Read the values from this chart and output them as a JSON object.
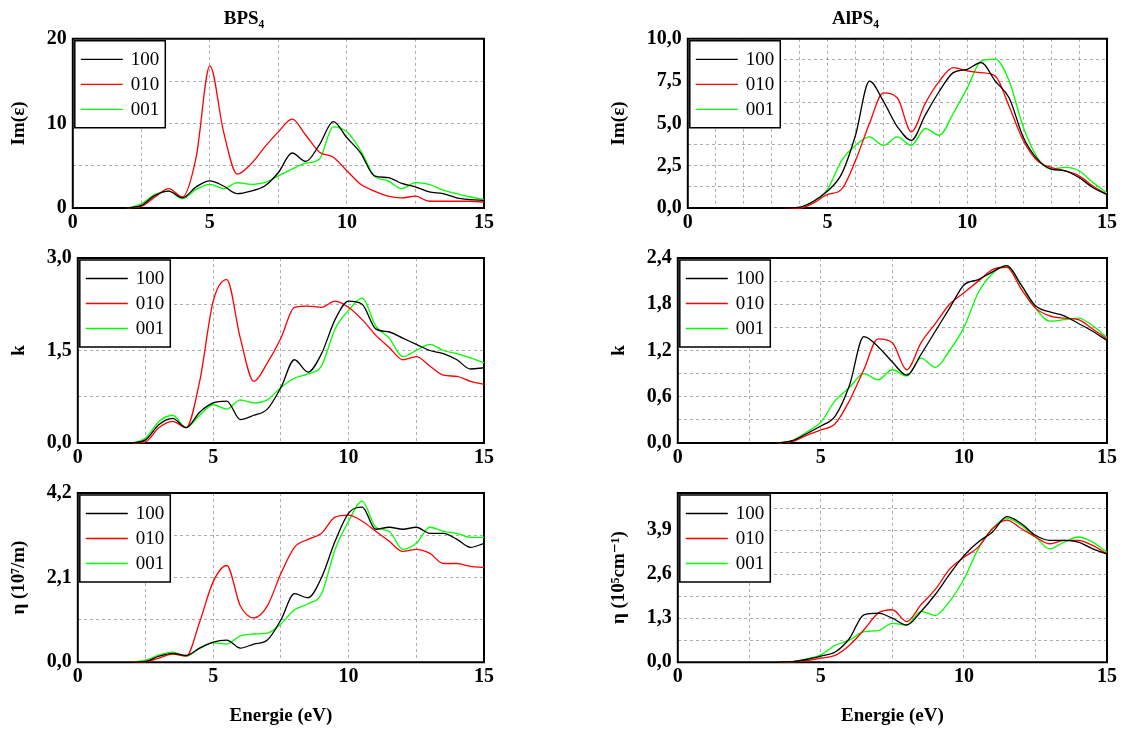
{
  "chart_data": [
    {
      "type": "line",
      "title": "BPS₄",
      "ylabel": "Im(ε)",
      "x": [
        2,
        2.5,
        3,
        3.5,
        4,
        4.5,
        5,
        5.5,
        6,
        6.5,
        7,
        7.5,
        8,
        8.5,
        9,
        9.5,
        10,
        10.5,
        11,
        11.5,
        12,
        12.5,
        13,
        13.5,
        14,
        14.5,
        15
      ],
      "xlim": [
        0,
        15
      ],
      "xticks": [
        0,
        {
          "value": 2.5,
          "label": null
        },
        5,
        {
          "value": 7.5,
          "label": null
        },
        10,
        {
          "value": 12.5,
          "label": null
        },
        15
      ],
      "ylim": [
        0,
        20
      ],
      "yticks": [
        0,
        {
          "value": 5,
          "label": null
        },
        10,
        {
          "value": 15,
          "label": null
        },
        20
      ],
      "grid": true,
      "legend": "top left",
      "series": [
        {
          "name": "100",
          "color": "#000000",
          "values": [
            0,
            0.3,
            1.5,
            2.0,
            1.2,
            2.5,
            3.2,
            2.6,
            1.7,
            2.0,
            2.6,
            4.2,
            6.5,
            5.5,
            7.5,
            10.2,
            8.3,
            6.5,
            3.8,
            3.6,
            2.9,
            2.5,
            1.9,
            1.7,
            1.2,
            1.0,
            0.9
          ]
        },
        {
          "name": "010",
          "color": "#ff0000",
          "values": [
            0,
            0.2,
            1.3,
            2.3,
            1.3,
            6,
            16.8,
            9,
            4.0,
            5.2,
            7.2,
            9.0,
            10.5,
            8.6,
            6.6,
            6.0,
            4.4,
            2.8,
            2.0,
            1.4,
            1.2,
            1.4,
            0.8,
            0.8,
            0.8,
            0.8,
            0.7
          ]
        },
        {
          "name": "001",
          "color": "#00ff00",
          "values": [
            0,
            0.5,
            1.6,
            2.0,
            1.1,
            2.2,
            2.8,
            2.3,
            3.0,
            2.8,
            3.0,
            3.8,
            4.6,
            5.3,
            5.8,
            9.6,
            9.0,
            6.8,
            3.8,
            3.2,
            2.3,
            3.0,
            2.8,
            2.1,
            1.7,
            1.3,
            1.0
          ]
        }
      ]
    },
    {
      "type": "line",
      "title": "AlPS₄",
      "ylabel": "Im(ε)",
      "x": [
        3.5,
        4,
        4.5,
        5,
        5.5,
        6,
        6.5,
        7,
        7.5,
        8,
        8.5,
        9,
        9.5,
        10,
        10.5,
        11,
        11.5,
        12,
        12.5,
        13,
        13.5,
        14,
        14.5,
        15
      ],
      "xlim": [
        0,
        15
      ],
      "xticks": [
        0,
        {
          "value": 1,
          "label": null
        },
        {
          "value": 2,
          "label": null
        },
        {
          "value": 3,
          "label": null
        },
        {
          "value": 4,
          "label": null
        },
        5,
        {
          "value": 6,
          "label": null
        },
        {
          "value": 7,
          "label": null
        },
        {
          "value": 8,
          "label": null
        },
        {
          "value": 9,
          "label": null
        },
        10,
        {
          "value": 11,
          "label": null
        },
        {
          "value": 12,
          "label": null
        },
        {
          "value": 13,
          "label": null
        },
        {
          "value": 14,
          "label": null
        },
        15
      ],
      "ylim": [
        0,
        10
      ],
      "yticks": [
        {
          "value": 0,
          "label": "0,0"
        },
        {
          "value": 1.25,
          "label": null
        },
        {
          "value": 2.5,
          "label": "2,5"
        },
        {
          "value": 3.75,
          "label": null
        },
        {
          "value": 5,
          "label": "5,0"
        },
        {
          "value": 6.25,
          "label": null
        },
        {
          "value": 7.5,
          "label": "7,5"
        },
        {
          "value": 8.75,
          "label": null
        },
        {
          "value": 10,
          "label": "10,0"
        }
      ],
      "grid": true,
      "legend": "top left",
      "series": [
        {
          "name": "100",
          "color": "#000000",
          "values": [
            0,
            0.05,
            0.4,
            1.0,
            2.0,
            4.3,
            7.5,
            6.3,
            4.8,
            4.0,
            5.5,
            6.9,
            8.0,
            8.2,
            8.6,
            7.5,
            6.5,
            4.2,
            2.9,
            2.3,
            2.2,
            1.8,
            1.2,
            0.8
          ]
        },
        {
          "name": "010",
          "color": "#ff0000",
          "values": [
            0,
            0,
            0.3,
            0.8,
            1.1,
            2.8,
            5.0,
            6.8,
            6.5,
            4.5,
            6.2,
            7.5,
            8.3,
            8.1,
            8.0,
            7.8,
            6.0,
            4.0,
            2.8,
            2.4,
            2.2,
            1.9,
            1.3,
            0.8
          ]
        },
        {
          "name": "001",
          "color": "#00ff00",
          "values": [
            null,
            0,
            0.4,
            1.1,
            2.8,
            3.7,
            4.2,
            3.7,
            4.2,
            3.7,
            4.7,
            4.3,
            5.6,
            7.1,
            8.7,
            8.8,
            7.5,
            4.8,
            3.0,
            2.3,
            2.4,
            2.2,
            1.5,
            0.9
          ]
        }
      ]
    },
    {
      "type": "line",
      "ylabel": "k",
      "x": [
        2,
        2.5,
        3,
        3.5,
        4,
        4.5,
        5,
        5.5,
        6,
        6.5,
        7,
        7.5,
        8,
        8.5,
        9,
        9.5,
        10,
        10.5,
        11,
        11.5,
        12,
        12.5,
        13,
        13.5,
        14,
        14.5,
        15
      ],
      "xlim": [
        0,
        15
      ],
      "xticks": [
        0,
        {
          "value": 2.5,
          "label": null
        },
        5,
        {
          "value": 7.5,
          "label": null
        },
        10,
        {
          "value": 12.5,
          "label": null
        },
        15
      ],
      "ylim": [
        0,
        3
      ],
      "yticks": [
        {
          "value": 0,
          "label": "0,0"
        },
        {
          "value": 0.75,
          "label": null
        },
        {
          "value": 1.5,
          "label": "1,5"
        },
        {
          "value": 2.25,
          "label": null
        },
        {
          "value": 3,
          "label": "3,0"
        }
      ],
      "grid": true,
      "legend": "top left",
      "series": [
        {
          "name": "100",
          "color": "#000000",
          "values": [
            0,
            0.05,
            0.3,
            0.4,
            0.25,
            0.5,
            0.65,
            0.68,
            0.38,
            0.45,
            0.55,
            0.9,
            1.35,
            1.15,
            1.45,
            2.0,
            2.3,
            2.25,
            1.85,
            1.8,
            1.7,
            1.6,
            1.5,
            1.45,
            1.35,
            1.2,
            1.22
          ]
        },
        {
          "name": "010",
          "color": "#ff0000",
          "values": [
            0,
            0.02,
            0.25,
            0.35,
            0.25,
            1.0,
            2.3,
            2.65,
            1.7,
            1.0,
            1.3,
            1.7,
            2.2,
            2.22,
            2.2,
            2.3,
            2.2,
            2.0,
            1.75,
            1.55,
            1.35,
            1.4,
            1.25,
            1.1,
            1.08,
            1.0,
            0.95
          ]
        },
        {
          "name": "001",
          "color": "#00ff00",
          "values": [
            0,
            0.08,
            0.35,
            0.45,
            0.25,
            0.45,
            0.62,
            0.55,
            0.7,
            0.65,
            0.7,
            0.9,
            1.05,
            1.12,
            1.25,
            1.85,
            2.15,
            2.35,
            1.9,
            1.7,
            1.4,
            1.5,
            1.6,
            1.5,
            1.45,
            1.38,
            1.3
          ]
        }
      ]
    },
    {
      "type": "line",
      "ylabel": "k",
      "x": [
        3.5,
        4,
        4.5,
        5,
        5.5,
        6,
        6.5,
        7,
        7.5,
        8,
        8.5,
        9,
        9.5,
        10,
        10.5,
        11,
        11.5,
        12,
        12.5,
        13,
        13.5,
        14,
        14.5,
        15
      ],
      "xlim": [
        0,
        15
      ],
      "xticks": [
        0,
        {
          "value": 2.5,
          "label": null
        },
        5,
        {
          "value": 7.5,
          "label": null
        },
        10,
        {
          "value": 12.5,
          "label": null
        },
        15
      ],
      "ylim": [
        0,
        2.4
      ],
      "yticks": [
        {
          "value": 0,
          "label": "0,0"
        },
        {
          "value": 0.3,
          "label": null
        },
        {
          "value": 0.6,
          "label": "0,6"
        },
        {
          "value": 0.9,
          "label": null
        },
        {
          "value": 1.2,
          "label": "1,2"
        },
        {
          "value": 1.5,
          "label": null
        },
        {
          "value": 1.8,
          "label": "1,8"
        },
        {
          "value": 2.1,
          "label": null
        },
        {
          "value": 2.4,
          "label": "2,4"
        }
      ],
      "grid": true,
      "legend": "top left",
      "series": [
        {
          "name": "100",
          "color": "#000000",
          "values": [
            0,
            0.03,
            0.12,
            0.22,
            0.35,
            0.75,
            1.38,
            1.25,
            1.05,
            0.88,
            1.15,
            1.45,
            1.75,
            2.05,
            2.12,
            2.22,
            2.3,
            2.05,
            1.78,
            1.7,
            1.65,
            1.55,
            1.45,
            1.33
          ]
        },
        {
          "name": "010",
          "color": "#ff0000",
          "values": [
            0,
            0.02,
            0.1,
            0.17,
            0.25,
            0.55,
            0.95,
            1.35,
            1.3,
            0.95,
            1.3,
            1.55,
            1.8,
            1.95,
            2.1,
            2.25,
            2.28,
            2.0,
            1.75,
            1.65,
            1.62,
            1.6,
            1.48,
            1.35
          ]
        },
        {
          "name": "001",
          "color": "#00ff00",
          "values": [
            0,
            0.03,
            0.14,
            0.27,
            0.55,
            0.72,
            0.9,
            0.82,
            0.95,
            0.87,
            1.1,
            0.98,
            1.2,
            1.5,
            1.95,
            2.2,
            2.3,
            2.05,
            1.75,
            1.58,
            1.6,
            1.62,
            1.52,
            1.37
          ]
        }
      ]
    },
    {
      "type": "line",
      "xlabel": "Energie (eV)",
      "ylabel": "η (10⁷/m)",
      "x": [
        2,
        2.5,
        3,
        3.5,
        4,
        4.5,
        5,
        5.5,
        6,
        6.5,
        7,
        7.5,
        8,
        8.5,
        9,
        9.5,
        10,
        10.5,
        11,
        11.5,
        12,
        12.5,
        13,
        13.5,
        14,
        14.5,
        15
      ],
      "xlim": [
        0,
        15
      ],
      "xticks": [
        0,
        {
          "value": 2.5,
          "label": null
        },
        5,
        {
          "value": 7.5,
          "label": null
        },
        10,
        {
          "value": 12.5,
          "label": null
        },
        15
      ],
      "ylim": [
        0,
        4.2
      ],
      "yticks": [
        {
          "value": 0,
          "label": "0,0"
        },
        {
          "value": 1.05,
          "label": null
        },
        {
          "value": 2.1,
          "label": "2,1"
        },
        {
          "value": 3.15,
          "label": null
        },
        {
          "value": 4.2,
          "label": "4,2"
        }
      ],
      "grid": true,
      "legend": "top left",
      "series": [
        {
          "name": "100",
          "color": "#000000",
          "values": [
            0,
            0.02,
            0.15,
            0.22,
            0.17,
            0.35,
            0.5,
            0.55,
            0.35,
            0.45,
            0.55,
            1.05,
            1.7,
            1.6,
            2.1,
            3.0,
            3.7,
            3.85,
            3.3,
            3.35,
            3.3,
            3.35,
            3.2,
            3.2,
            3.05,
            2.85,
            2.95
          ]
        },
        {
          "name": "010",
          "color": "#ff0000",
          "values": [
            0,
            0.01,
            0.1,
            0.2,
            0.15,
            1.0,
            2.0,
            2.4,
            1.4,
            1.1,
            1.4,
            2.2,
            2.85,
            3.05,
            3.2,
            3.6,
            3.65,
            3.5,
            3.25,
            3.0,
            2.75,
            2.8,
            2.7,
            2.45,
            2.45,
            2.38,
            2.35
          ]
        },
        {
          "name": "001",
          "color": "#00ff00",
          "values": [
            0,
            0.05,
            0.18,
            0.25,
            0.15,
            0.35,
            0.48,
            0.45,
            0.65,
            0.7,
            0.72,
            0.95,
            1.3,
            1.45,
            1.7,
            2.8,
            3.5,
            4.0,
            3.35,
            3.25,
            2.8,
            2.95,
            3.35,
            3.25,
            3.2,
            3.1,
            3.1
          ]
        }
      ]
    },
    {
      "type": "line",
      "xlabel": "Energie (eV)",
      "ylabel": "η (10⁵cm⁻¹)",
      "x": [
        3.5,
        4,
        4.5,
        5,
        5.5,
        6,
        6.5,
        7,
        7.5,
        8,
        8.5,
        9,
        9.5,
        10,
        10.5,
        11,
        11.5,
        12,
        12.5,
        13,
        13.5,
        14,
        14.5,
        15
      ],
      "xlim": [
        0,
        15
      ],
      "xticks": [
        0,
        {
          "value": 2.5,
          "label": null
        },
        5,
        {
          "value": 7.5,
          "label": null
        },
        10,
        {
          "value": 12.5,
          "label": null
        },
        15
      ],
      "ylim": [
        0,
        5
      ],
      "yticks": [
        {
          "value": 0,
          "label": "0,0"
        },
        {
          "value": 0.65,
          "label": null
        },
        {
          "value": 1.3,
          "label": "1,3"
        },
        {
          "value": 1.95,
          "label": null
        },
        {
          "value": 2.6,
          "label": "2,6"
        },
        {
          "value": 3.25,
          "label": null
        },
        {
          "value": 3.9,
          "label": "3,9"
        },
        {
          "value": 4.55,
          "label": null
        }
      ],
      "grid": true,
      "legend": "top left",
      "series": [
        {
          "name": "100",
          "color": "#000000",
          "values": [
            0,
            0.02,
            0.08,
            0.18,
            0.3,
            0.7,
            1.4,
            1.45,
            1.3,
            1.1,
            1.5,
            2.0,
            2.6,
            3.15,
            3.55,
            3.85,
            4.3,
            4.1,
            3.75,
            3.6,
            3.6,
            3.55,
            3.35,
            3.2
          ]
        },
        {
          "name": "010",
          "color": "#ff0000",
          "values": [
            0,
            0.01,
            0.05,
            0.12,
            0.2,
            0.5,
            0.95,
            1.45,
            1.55,
            1.2,
            1.7,
            2.15,
            2.75,
            3.1,
            3.4,
            3.95,
            4.2,
            3.95,
            3.7,
            3.5,
            3.6,
            3.6,
            3.45,
            3.2
          ]
        },
        {
          "name": "001",
          "color": "#00ff00",
          "values": [
            0,
            0.02,
            0.1,
            0.22,
            0.5,
            0.65,
            0.9,
            0.93,
            1.15,
            1.1,
            1.5,
            1.38,
            1.8,
            2.45,
            3.35,
            3.95,
            4.25,
            4.05,
            3.7,
            3.35,
            3.55,
            3.7,
            3.55,
            3.25
          ]
        }
      ]
    }
  ]
}
